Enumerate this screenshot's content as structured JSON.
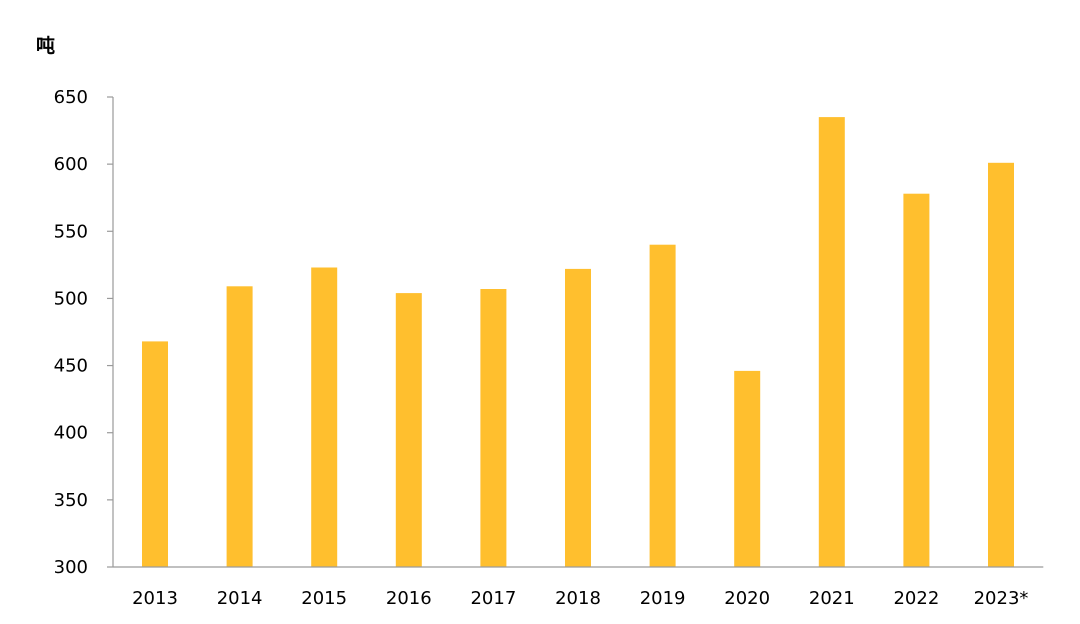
{
  "chart_data": {
    "type": "bar",
    "title": "",
    "xlabel": "",
    "ylabel": "吨",
    "categories": [
      "2013",
      "2014",
      "2015",
      "2016",
      "2017",
      "2018",
      "2019",
      "2020",
      "2021",
      "2022",
      "2023*"
    ],
    "values": [
      468,
      509,
      523,
      504,
      507,
      522,
      540,
      446,
      635,
      578,
      601
    ],
    "ylim": [
      300,
      650
    ],
    "yticks": [
      300,
      350,
      400,
      450,
      500,
      550,
      600,
      650
    ],
    "grid": false,
    "legend": "none",
    "bar_color": "#FFBF2E",
    "axis_color": "#9a9a9a"
  }
}
